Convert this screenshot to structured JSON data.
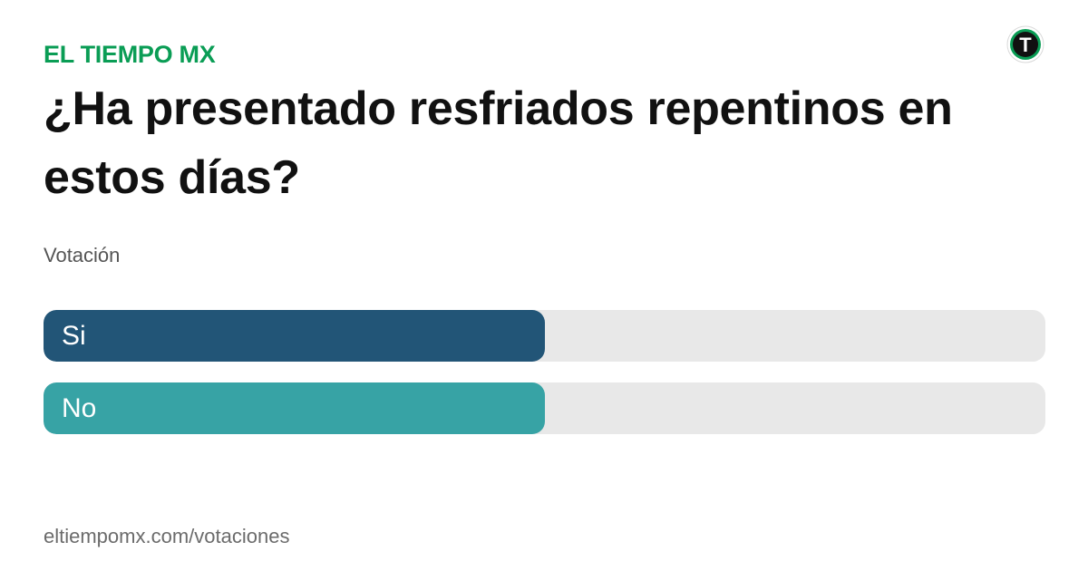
{
  "brand": "EL TIEMPO MX",
  "logo": {
    "icon": "el-tiempo-logo-icon",
    "letter": "T",
    "colors": {
      "ring": "#0a9d55",
      "disc": "#111111",
      "letter": "#ffffff"
    }
  },
  "question": "¿Ha presentado resfriados repentinos en estos días?",
  "subtitle": "Votación",
  "options": [
    {
      "label": "Si",
      "fill_fraction": 0.5,
      "color": "#225577"
    },
    {
      "label": "No",
      "fill_fraction": 0.5,
      "color": "#37a3a5"
    }
  ],
  "footer": "eltiempomx.com/votaciones",
  "colors": {
    "brand": "#0a9d55",
    "question_text": "#111111",
    "track": "#e8e8e8",
    "muted_text": "#6b6b6b"
  }
}
